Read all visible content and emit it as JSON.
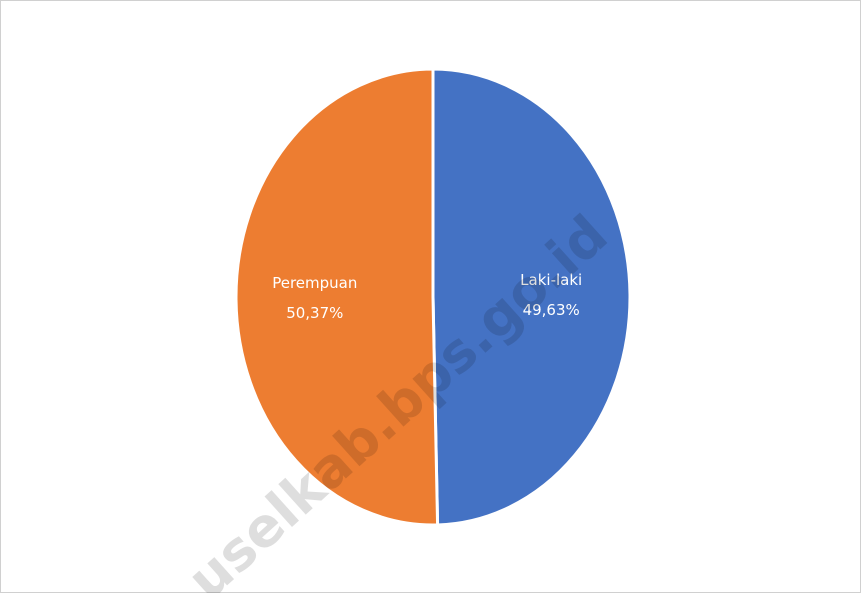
{
  "chart_data": {
    "type": "pie",
    "categories": [
      "Laki-laki",
      "Perempuan"
    ],
    "values": [
      49.63,
      50.37
    ],
    "value_labels": [
      "49,63%",
      "50,37%"
    ],
    "colors": [
      "#4472c4",
      "#ed7d31"
    ],
    "watermark": "uselkab.bps.go.id"
  }
}
